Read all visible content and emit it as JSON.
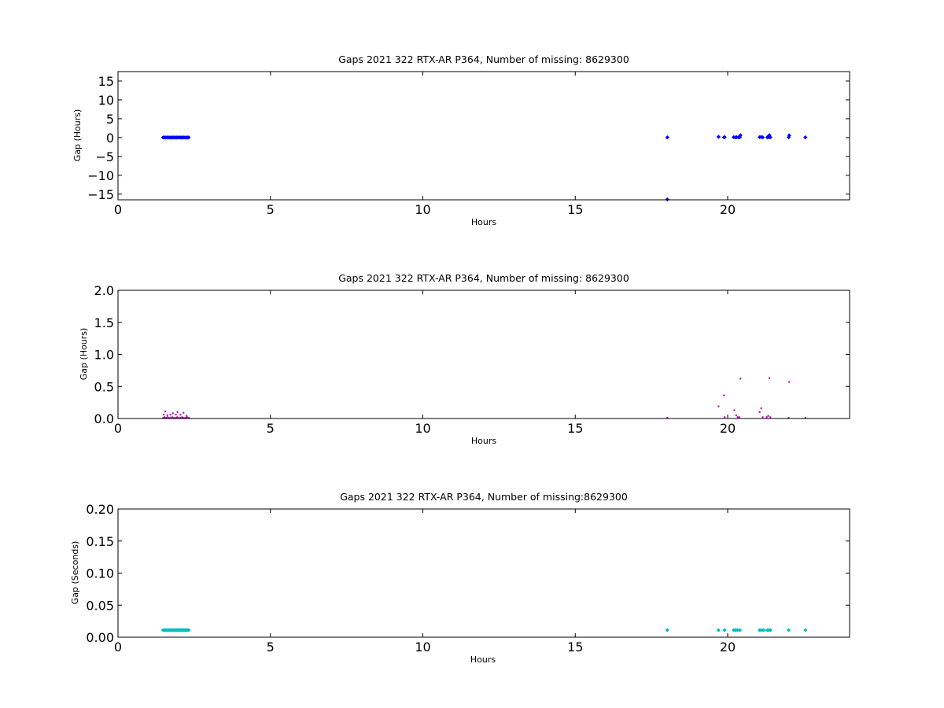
{
  "chart_data": [
    {
      "type": "scatter",
      "title": "Gaps 2021 322 RTX-AR  P364, Number of missing: 8629300",
      "xlabel": "Hours",
      "ylabel": "Gap (Hours)",
      "xlim": [
        0,
        24
      ],
      "ylim": [
        -16.5,
        17.5
      ],
      "xticks": [
        0,
        5,
        10,
        15,
        20
      ],
      "yticks": [
        -15,
        -10,
        -5,
        0,
        5,
        10,
        15
      ],
      "ytick_labels": [
        "−15",
        "−10",
        "−5",
        "0",
        "5",
        "10",
        "15"
      ],
      "grid": false,
      "color": "#0000ff",
      "series": [
        {
          "x": [
            1.48,
            1.52,
            1.56,
            1.6,
            1.64,
            1.68,
            1.72,
            1.76,
            1.8,
            1.84,
            1.88,
            1.92,
            1.96,
            2.0,
            2.04,
            2.08,
            2.12,
            2.16,
            2.2,
            2.24,
            2.28,
            2.32,
            18.02,
            18.02,
            19.7,
            19.88,
            19.9,
            20.2,
            20.26,
            20.3,
            20.36,
            20.4,
            20.42,
            21.05,
            21.1,
            21.15,
            21.3,
            21.32,
            21.35,
            21.37,
            21.4,
            22.0,
            22.02,
            22.55
          ],
          "y": [
            0.02,
            0.03,
            0.01,
            0.02,
            0.04,
            0.02,
            0.01,
            0.03,
            0.02,
            0.05,
            0.01,
            0.02,
            0.03,
            0.02,
            0.04,
            0.01,
            0.02,
            0.03,
            0.02,
            0.01,
            0.02,
            0.02,
            0.05,
            -16.4,
            0.2,
            0.05,
            0.1,
            0.1,
            0.05,
            0.1,
            0.05,
            0.1,
            0.62,
            0.1,
            0.16,
            0.05,
            0.05,
            0.2,
            0.1,
            0.64,
            0.05,
            0.05,
            0.58,
            0.05
          ]
        }
      ]
    },
    {
      "type": "scatter",
      "title": "Gaps 2021 322 RTX-AR  P364, Number of missing: 8629300",
      "xlabel": "Hours",
      "ylabel": "Gap (Hours)",
      "xlim": [
        0,
        24
      ],
      "ylim": [
        0,
        2
      ],
      "xticks": [
        0,
        5,
        10,
        15,
        20
      ],
      "yticks": [
        0,
        0.5,
        1,
        1.5,
        2
      ],
      "ytick_labels": [
        "0.0",
        "0.5",
        "1.0",
        "1.5",
        "2.0"
      ],
      "grid": false,
      "color": "#bf00bf",
      "series": [
        {
          "x": [
            1.48,
            1.52,
            1.55,
            1.58,
            1.62,
            1.66,
            1.7,
            1.74,
            1.78,
            1.82,
            1.86,
            1.9,
            1.94,
            1.98,
            2.02,
            2.06,
            2.1,
            2.14,
            2.18,
            2.22,
            2.26,
            2.3,
            2.34,
            1.5,
            1.55,
            1.62,
            1.72,
            1.8,
            1.9,
            1.95,
            2.05,
            2.15,
            2.25,
            18.02,
            19.7,
            19.88,
            19.9,
            20.22,
            20.28,
            20.33,
            20.38,
            20.42,
            21.05,
            21.1,
            21.15,
            21.28,
            21.33,
            21.37,
            21.4,
            22.0,
            22.02,
            22.55
          ],
          "y": [
            0.01,
            0.02,
            0.005,
            0.01,
            0.02,
            0.01,
            0.005,
            0.01,
            0.02,
            0.01,
            0.005,
            0.01,
            0.02,
            0.01,
            0.005,
            0.01,
            0.02,
            0.01,
            0.005,
            0.01,
            0.02,
            0.01,
            0.005,
            0.06,
            0.11,
            0.05,
            0.06,
            0.08,
            0.06,
            0.1,
            0.06,
            0.09,
            0.04,
            0.01,
            0.19,
            0.36,
            0.02,
            0.13,
            0.05,
            0.02,
            0.02,
            0.62,
            0.1,
            0.16,
            0.02,
            0.02,
            0.04,
            0.63,
            0.02,
            0.01,
            0.57,
            0.01
          ]
        }
      ]
    },
    {
      "type": "scatter",
      "title": "Gaps 2021 322 RTX-AR  P364, Number of missing:8629300",
      "xlabel": "Hours",
      "ylabel": "Gap (Seconds)",
      "xlim": [
        0,
        24
      ],
      "ylim": [
        0,
        0.2
      ],
      "xticks": [
        0,
        5,
        10,
        15,
        20
      ],
      "yticks": [
        0,
        0.05,
        0.1,
        0.15,
        0.2
      ],
      "ytick_labels": [
        "0.00",
        "0.05",
        "0.10",
        "0.15",
        "0.20"
      ],
      "grid": false,
      "color": "#00bfbf",
      "series": [
        {
          "x": [
            1.48,
            1.52,
            1.56,
            1.6,
            1.64,
            1.68,
            1.72,
            1.76,
            1.8,
            1.84,
            1.88,
            1.92,
            1.96,
            2.0,
            2.04,
            2.08,
            2.12,
            2.16,
            2.2,
            2.24,
            2.28,
            2.32,
            18.02,
            19.7,
            19.9,
            20.2,
            20.26,
            20.32,
            20.4,
            21.05,
            21.12,
            21.18,
            21.3,
            21.35,
            21.4,
            22.0,
            22.55
          ],
          "y": [
            0.011,
            0.011,
            0.011,
            0.011,
            0.011,
            0.011,
            0.011,
            0.011,
            0.011,
            0.011,
            0.011,
            0.011,
            0.011,
            0.011,
            0.011,
            0.011,
            0.011,
            0.011,
            0.011,
            0.011,
            0.011,
            0.011,
            0.011,
            0.011,
            0.011,
            0.011,
            0.011,
            0.011,
            0.011,
            0.011,
            0.011,
            0.011,
            0.011,
            0.011,
            0.011,
            0.011,
            0.011
          ]
        }
      ]
    }
  ]
}
